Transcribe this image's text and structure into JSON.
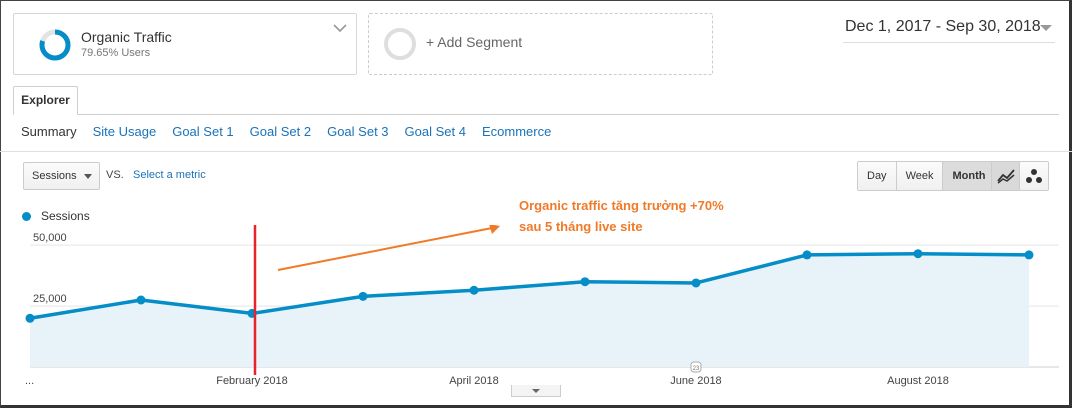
{
  "segment": {
    "name": "Organic Traffic",
    "subtitle": "79.65% Users",
    "color": "#058dc7"
  },
  "add_segment": {
    "label": "+ Add Segment"
  },
  "date_range": "Dec 1, 2017 - Sep 30, 2018",
  "tabs": [
    {
      "label": "Explorer"
    }
  ],
  "subnav": [
    {
      "label": "Summary",
      "active": true
    },
    {
      "label": "Site Usage"
    },
    {
      "label": "Goal Set 1"
    },
    {
      "label": "Goal Set 2"
    },
    {
      "label": "Goal Set 3"
    },
    {
      "label": "Goal Set 4"
    },
    {
      "label": "Ecommerce"
    }
  ],
  "metric": {
    "selected": "Sessions",
    "vs": "VS.",
    "select_label": "Select a metric"
  },
  "period_buttons": [
    {
      "label": "Day"
    },
    {
      "label": "Week"
    },
    {
      "label": "Month",
      "active": true
    }
  ],
  "view_buttons": [
    {
      "icon": "line-chart-icon",
      "active": true
    },
    {
      "icon": "motion-chart-icon"
    }
  ],
  "annotation": {
    "line1": "Organic traffic tăng trưởng +70%",
    "line2": "sau 5 tháng live site",
    "color": "#f07a28"
  },
  "chart_data": {
    "type": "area",
    "series": [
      {
        "name": "Sessions",
        "color": "#058dc7",
        "values": [
          20000,
          27500,
          22000,
          29000,
          31500,
          35000,
          34500,
          46000,
          46500,
          46000
        ]
      }
    ],
    "x": [
      "Dec 2017",
      "Jan 2018",
      "Feb 2018",
      "Mar 2018",
      "Apr 2018",
      "May 2018",
      "Jun 2018",
      "Jul 2018",
      "Aug 2018",
      "Sep 2018"
    ],
    "x_tick_labels": [
      "...",
      "February 2018",
      "April 2018",
      "June 2018",
      "August 2018"
    ],
    "y_tick_labels": [
      "50,000",
      "25,000"
    ],
    "y_ticks": [
      50000,
      25000
    ],
    "ylim": [
      0,
      55000
    ],
    "grid": true,
    "annotation_marker_label": "23",
    "marker_line_at": "Feb 2018",
    "marker_line_color": "#e8222a"
  }
}
